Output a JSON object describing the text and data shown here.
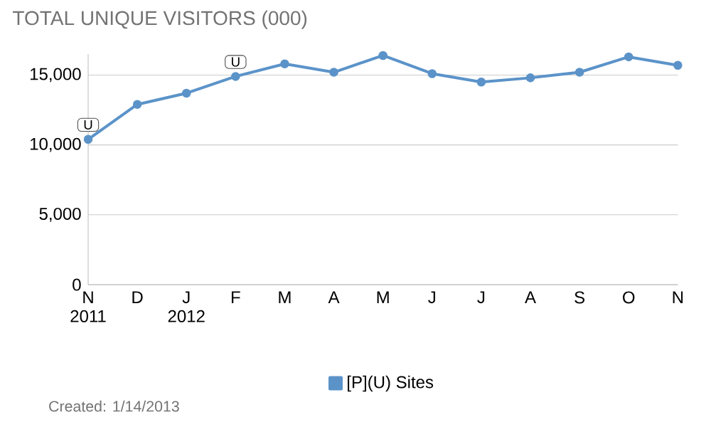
{
  "chart_data": {
    "type": "line",
    "title": "TOTAL UNIQUE VISITORS (000)",
    "categories": [
      "N 2011",
      "D",
      "J 2012",
      "F",
      "M",
      "A",
      "M",
      "J",
      "J",
      "A",
      "S",
      "O",
      "N"
    ],
    "series": [
      {
        "name": "[P](U) Sites",
        "color": "#5b93c9",
        "values": [
          10400,
          12900,
          13700,
          14900,
          15800,
          15200,
          16400,
          15100,
          14500,
          14800,
          15200,
          16300,
          15700
        ]
      }
    ],
    "ylim": [
      0,
      16500
    ],
    "yticks": [
      0,
      {
        "value": 5000,
        "label": "5,000"
      },
      {
        "value": 10000,
        "label": "10,000"
      },
      {
        "value": 15000,
        "label": "15,000"
      }
    ],
    "grid": "y",
    "legend": "bottom",
    "marker": "circle",
    "line_style": "solid",
    "annotations": [
      {
        "text": "U",
        "x": "N 2011",
        "y": 10400
      },
      {
        "text": "U",
        "x": "F",
        "y": 14900
      },
      "Created: 1/14/2013"
    ]
  }
}
